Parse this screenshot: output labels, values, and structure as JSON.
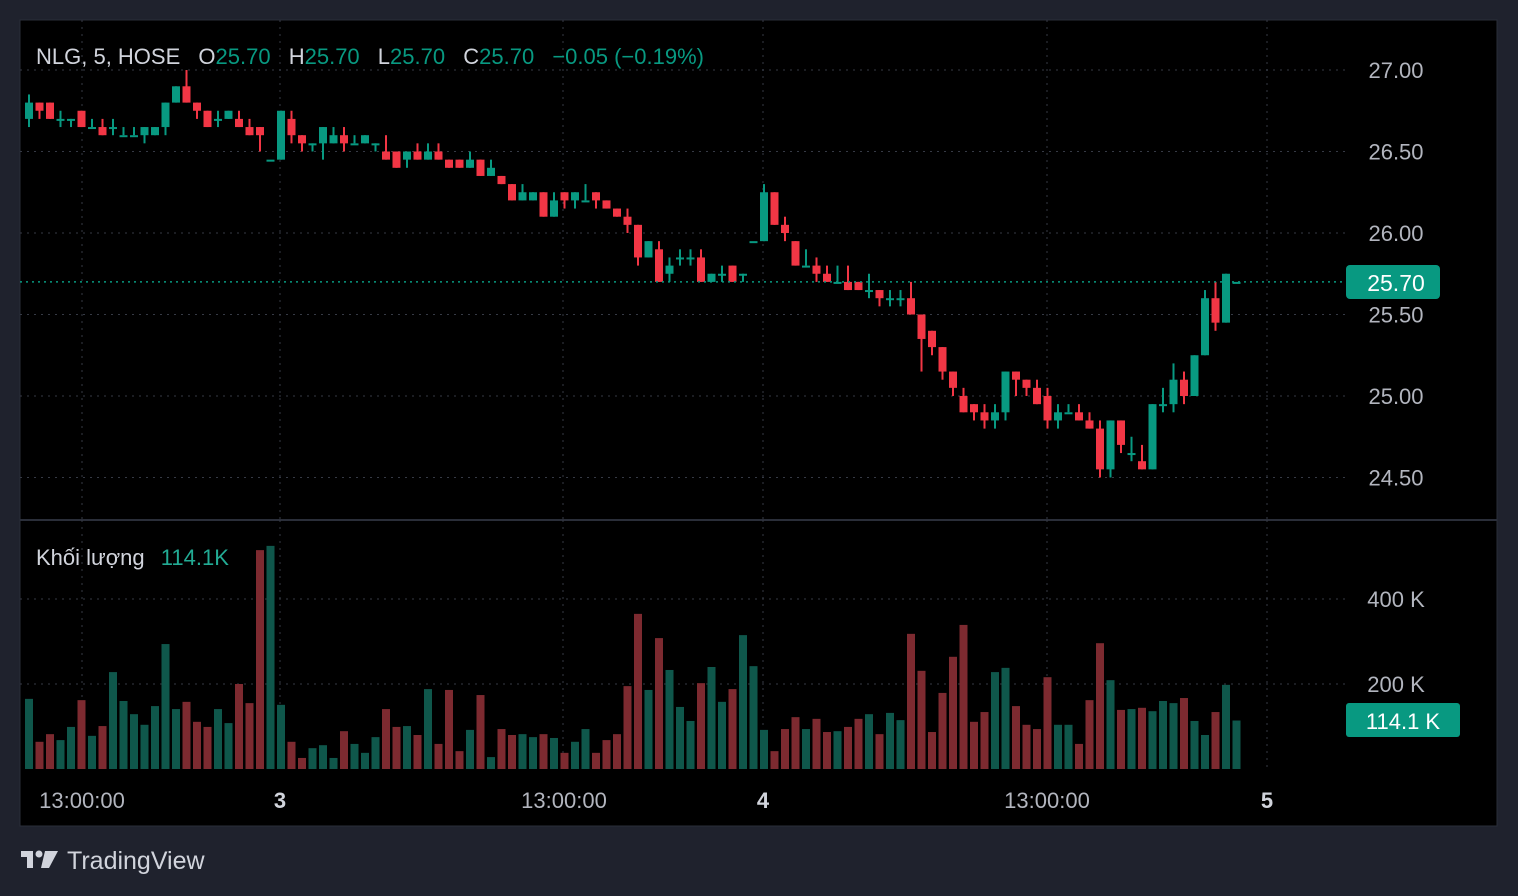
{
  "legend": {
    "symbol": "NLG, 5, HOSE",
    "o_label": "O",
    "o": "25.70",
    "h_label": "H",
    "h": "25.70",
    "l_label": "L",
    "l": "25.70",
    "c_label": "C",
    "c": "25.70",
    "change": "−0.05 (−0.19%)"
  },
  "volume_legend": {
    "label": "Khối lượng",
    "value": "114.1K"
  },
  "last_price_label": "25.70",
  "last_volume_label": "114.1 K",
  "brand": "TradingView",
  "colors": {
    "up": "#089981",
    "down": "#f23645",
    "vol_up": "#0f574b",
    "vol_down": "#7d2a30",
    "label_bg": "#089981"
  },
  "chart_data": {
    "type": "candlestick",
    "title": "NLG, 5, HOSE",
    "price_ticks": [
      "27.00",
      "26.50",
      "26.00",
      "25.50",
      "25.00",
      "24.50"
    ],
    "price_tick_values": [
      27.0,
      26.5,
      26.0,
      25.5,
      25.0,
      24.5
    ],
    "volume_ticks": [
      "400 K",
      "200 K"
    ],
    "volume_tick_values": [
      400,
      200
    ],
    "time_ticks": [
      "13:00:00",
      "3",
      "13:00:00",
      "4",
      "13:00:00",
      "5"
    ],
    "ylim": [
      24.4,
      27.3
    ],
    "volume_unit": "K",
    "last_price": 25.7,
    "candle_fields": [
      "open",
      "high",
      "low",
      "close",
      "volume_k",
      "up"
    ],
    "candles": [
      [
        26.7,
        26.85,
        26.65,
        26.8,
        165,
        1
      ],
      [
        26.8,
        26.8,
        26.7,
        26.75,
        64,
        0
      ],
      [
        26.8,
        26.8,
        26.7,
        26.7,
        82,
        0
      ],
      [
        26.7,
        26.75,
        26.65,
        26.7,
        68,
        1
      ],
      [
        26.7,
        26.7,
        26.65,
        26.7,
        99,
        1
      ],
      [
        26.75,
        26.75,
        26.65,
        26.65,
        162,
        0
      ],
      [
        26.65,
        26.7,
        26.65,
        26.65,
        78,
        1
      ],
      [
        26.65,
        26.7,
        26.6,
        26.6,
        101,
        0
      ],
      [
        26.65,
        26.7,
        26.6,
        26.65,
        228,
        1
      ],
      [
        26.6,
        26.65,
        26.6,
        26.6,
        160,
        1
      ],
      [
        26.6,
        26.65,
        26.6,
        26.6,
        129,
        1
      ],
      [
        26.6,
        26.65,
        26.55,
        26.65,
        104,
        1
      ],
      [
        26.6,
        26.65,
        26.6,
        26.65,
        148,
        1
      ],
      [
        26.65,
        26.8,
        26.6,
        26.8,
        294,
        1
      ],
      [
        26.8,
        26.9,
        26.8,
        26.9,
        141,
        1
      ],
      [
        26.9,
        27.0,
        26.8,
        26.8,
        158,
        0
      ],
      [
        26.8,
        26.8,
        26.7,
        26.75,
        111,
        0
      ],
      [
        26.75,
        26.75,
        26.65,
        26.65,
        99,
        0
      ],
      [
        26.7,
        26.75,
        26.65,
        26.7,
        141,
        1
      ],
      [
        26.7,
        26.75,
        26.7,
        26.75,
        108,
        1
      ],
      [
        26.7,
        26.75,
        26.65,
        26.65,
        200,
        0
      ],
      [
        26.65,
        26.7,
        26.6,
        26.6,
        155,
        0
      ],
      [
        26.65,
        26.65,
        26.5,
        26.6,
        515,
        0
      ],
      [
        26.45,
        26.45,
        26.45,
        26.45,
        525,
        1
      ],
      [
        26.45,
        26.75,
        26.45,
        26.75,
        151,
        1
      ],
      [
        26.7,
        26.75,
        26.55,
        26.6,
        64,
        0
      ],
      [
        26.6,
        26.6,
        26.5,
        26.55,
        26,
        0
      ],
      [
        26.55,
        26.55,
        26.5,
        26.55,
        49,
        1
      ],
      [
        26.55,
        26.65,
        26.45,
        26.65,
        56,
        1
      ],
      [
        26.55,
        26.65,
        26.55,
        26.6,
        26,
        1
      ],
      [
        26.6,
        26.65,
        26.5,
        26.55,
        89,
        0
      ],
      [
        26.55,
        26.6,
        26.55,
        26.55,
        59,
        1
      ],
      [
        26.55,
        26.6,
        26.55,
        26.6,
        38,
        1
      ],
      [
        26.55,
        26.55,
        26.5,
        26.55,
        75,
        1
      ],
      [
        26.5,
        26.6,
        26.45,
        26.45,
        141,
        0
      ],
      [
        26.5,
        26.5,
        26.4,
        26.4,
        99,
        0
      ],
      [
        26.45,
        26.5,
        26.4,
        26.5,
        101,
        1
      ],
      [
        26.5,
        26.55,
        26.45,
        26.45,
        80,
        0
      ],
      [
        26.45,
        26.55,
        26.45,
        26.5,
        188,
        1
      ],
      [
        26.5,
        26.55,
        26.45,
        26.45,
        59,
        0
      ],
      [
        26.45,
        26.45,
        26.4,
        26.4,
        186,
        0
      ],
      [
        26.45,
        26.45,
        26.4,
        26.4,
        42,
        0
      ],
      [
        26.4,
        26.5,
        26.4,
        26.45,
        92,
        1
      ],
      [
        26.45,
        26.45,
        26.35,
        26.35,
        174,
        0
      ],
      [
        26.35,
        26.45,
        26.35,
        26.4,
        28,
        1
      ],
      [
        26.35,
        26.35,
        26.3,
        26.3,
        94,
        0
      ],
      [
        26.3,
        26.3,
        26.2,
        26.2,
        80,
        0
      ],
      [
        26.2,
        26.3,
        26.2,
        26.25,
        82,
        1
      ],
      [
        26.2,
        26.25,
        26.2,
        26.25,
        75,
        1
      ],
      [
        26.25,
        26.25,
        26.1,
        26.1,
        82,
        0
      ],
      [
        26.1,
        26.25,
        26.1,
        26.2,
        73,
        1
      ],
      [
        26.25,
        26.25,
        26.15,
        26.2,
        38,
        0
      ],
      [
        26.2,
        26.25,
        26.15,
        26.25,
        64,
        1
      ],
      [
        26.2,
        26.3,
        26.2,
        26.2,
        94,
        1
      ],
      [
        26.25,
        26.25,
        26.15,
        26.2,
        38,
        0
      ],
      [
        26.2,
        26.2,
        26.15,
        26.15,
        68,
        0
      ],
      [
        26.15,
        26.15,
        26.1,
        26.1,
        82,
        0
      ],
      [
        26.1,
        26.15,
        26.0,
        26.05,
        195,
        0
      ],
      [
        26.05,
        26.05,
        25.8,
        25.85,
        365,
        0
      ],
      [
        25.85,
        25.95,
        25.85,
        25.95,
        186,
        1
      ],
      [
        25.9,
        25.95,
        25.7,
        25.7,
        308,
        0
      ],
      [
        25.75,
        25.85,
        25.7,
        25.8,
        233,
        1
      ],
      [
        25.85,
        25.9,
        25.8,
        25.85,
        146,
        1
      ],
      [
        25.85,
        25.9,
        25.8,
        25.85,
        113,
        1
      ],
      [
        25.85,
        25.9,
        25.7,
        25.7,
        202,
        0
      ],
      [
        25.7,
        25.75,
        25.7,
        25.75,
        240,
        1
      ],
      [
        25.75,
        25.8,
        25.7,
        25.75,
        158,
        1
      ],
      [
        25.8,
        25.8,
        25.7,
        25.7,
        188,
        0
      ],
      [
        25.75,
        25.75,
        25.7,
        25.75,
        315,
        1
      ],
      [
        25.95,
        25.95,
        25.95,
        25.95,
        242,
        1
      ],
      [
        25.95,
        26.3,
        25.95,
        26.25,
        92,
        1
      ],
      [
        26.25,
        26.25,
        26.05,
        26.05,
        42,
        0
      ],
      [
        26.05,
        26.1,
        25.95,
        26.0,
        94,
        0
      ],
      [
        25.95,
        25.95,
        25.8,
        25.8,
        122,
        0
      ],
      [
        25.8,
        25.9,
        25.8,
        25.8,
        94,
        1
      ],
      [
        25.8,
        25.85,
        25.7,
        25.75,
        118,
        0
      ],
      [
        25.75,
        25.8,
        25.7,
        25.7,
        87,
        0
      ],
      [
        25.7,
        25.8,
        25.7,
        25.7,
        89,
        1
      ],
      [
        25.7,
        25.8,
        25.65,
        25.65,
        99,
        0
      ],
      [
        25.7,
        25.7,
        25.65,
        25.65,
        118,
        0
      ],
      [
        25.65,
        25.75,
        25.6,
        25.65,
        129,
        1
      ],
      [
        25.65,
        25.65,
        25.55,
        25.6,
        82,
        0
      ],
      [
        25.6,
        25.65,
        25.55,
        25.6,
        132,
        1
      ],
      [
        25.6,
        25.65,
        25.55,
        25.6,
        115,
        1
      ],
      [
        25.6,
        25.7,
        25.5,
        25.5,
        318,
        0
      ],
      [
        25.5,
        25.5,
        25.15,
        25.35,
        231,
        0
      ],
      [
        25.4,
        25.4,
        25.25,
        25.3,
        87,
        0
      ],
      [
        25.3,
        25.3,
        25.1,
        25.15,
        179,
        0
      ],
      [
        25.15,
        25.15,
        25.0,
        25.05,
        264,
        0
      ],
      [
        25.0,
        25.05,
        24.9,
        24.9,
        339,
        0
      ],
      [
        24.95,
        24.95,
        24.85,
        24.9,
        111,
        0
      ],
      [
        24.9,
        24.95,
        24.8,
        24.85,
        134,
        0
      ],
      [
        24.85,
        24.95,
        24.8,
        24.9,
        228,
        1
      ],
      [
        24.9,
        25.15,
        24.85,
        25.15,
        238,
        1
      ],
      [
        25.15,
        25.15,
        25.0,
        25.1,
        148,
        0
      ],
      [
        25.1,
        25.1,
        25.0,
        25.05,
        104,
        0
      ],
      [
        25.05,
        25.1,
        24.95,
        24.95,
        94,
        0
      ],
      [
        25.0,
        25.05,
        24.8,
        24.85,
        216,
        0
      ],
      [
        24.85,
        24.95,
        24.8,
        24.9,
        104,
        1
      ],
      [
        24.9,
        24.95,
        24.9,
        24.9,
        104,
        1
      ],
      [
        24.9,
        24.95,
        24.85,
        24.85,
        59,
        0
      ],
      [
        24.85,
        24.9,
        24.8,
        24.8,
        162,
        0
      ],
      [
        24.8,
        24.85,
        24.5,
        24.55,
        296,
        0
      ],
      [
        24.55,
        24.85,
        24.5,
        24.85,
        209,
        1
      ],
      [
        24.85,
        24.85,
        24.65,
        24.7,
        139,
        0
      ],
      [
        24.65,
        24.75,
        24.6,
        24.65,
        141,
        1
      ],
      [
        24.6,
        24.7,
        24.55,
        24.55,
        144,
        0
      ],
      [
        24.55,
        24.95,
        24.55,
        24.95,
        136,
        1
      ],
      [
        24.95,
        25.05,
        24.9,
        24.95,
        160,
        1
      ],
      [
        24.95,
        25.2,
        24.9,
        25.1,
        155,
        1
      ],
      [
        25.1,
        25.15,
        24.95,
        25.0,
        167,
        0
      ],
      [
        25.0,
        25.25,
        25.0,
        25.25,
        113,
        1
      ],
      [
        25.25,
        25.65,
        25.25,
        25.6,
        80,
        1
      ],
      [
        25.6,
        25.7,
        25.4,
        25.45,
        134,
        0
      ],
      [
        25.45,
        25.75,
        25.45,
        25.75,
        198,
        1
      ],
      [
        25.7,
        25.7,
        25.7,
        25.7,
        114.1,
        1
      ]
    ]
  }
}
